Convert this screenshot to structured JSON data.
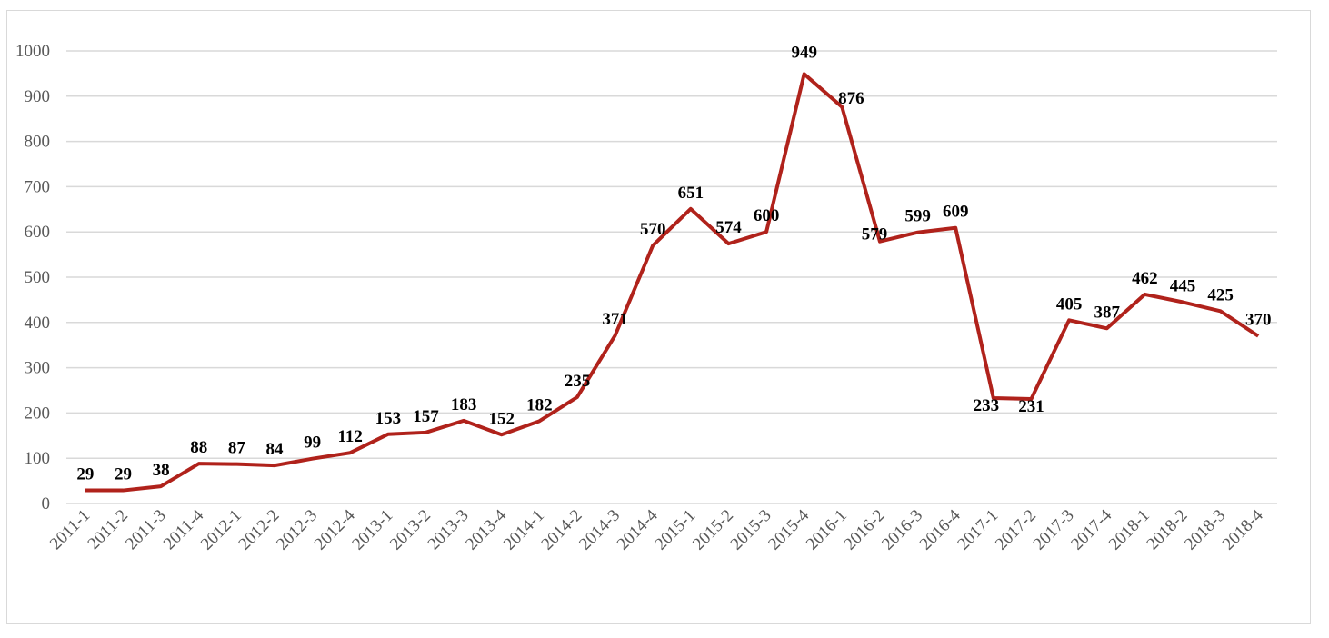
{
  "chart_data": {
    "type": "line",
    "title": "",
    "xlabel": "",
    "ylabel": "",
    "ylim": [
      0,
      1000
    ],
    "yticks": [
      0,
      100,
      200,
      300,
      400,
      500,
      600,
      700,
      800,
      900,
      1000
    ],
    "grid": true,
    "legend": "none",
    "line_color": "#B0221B",
    "categories": [
      "2011-1",
      "2011-2",
      "2011-3",
      "2011-4",
      "2012-1",
      "2012-2",
      "2012-3",
      "2012-4",
      "2013-1",
      "2013-2",
      "2013-3",
      "2013-4",
      "2014-1",
      "2014-2",
      "2014-3",
      "2014-4",
      "2015-1",
      "2015-2",
      "2015-3",
      "2015-4",
      "2016-1",
      "2016-2",
      "2016-3",
      "2016-4",
      "2017-1",
      "2017-2",
      "2017-3",
      "2017-4",
      "2018-1",
      "2018-2",
      "2018-3",
      "2018-4"
    ],
    "series": [
      {
        "name": "",
        "values": [
          29,
          29,
          38,
          88,
          87,
          84,
          99,
          112,
          153,
          157,
          183,
          152,
          182,
          235,
          371,
          570,
          651,
          574,
          600,
          949,
          876,
          579,
          599,
          609,
          233,
          231,
          405,
          387,
          462,
          445,
          425,
          370
        ]
      }
    ]
  }
}
